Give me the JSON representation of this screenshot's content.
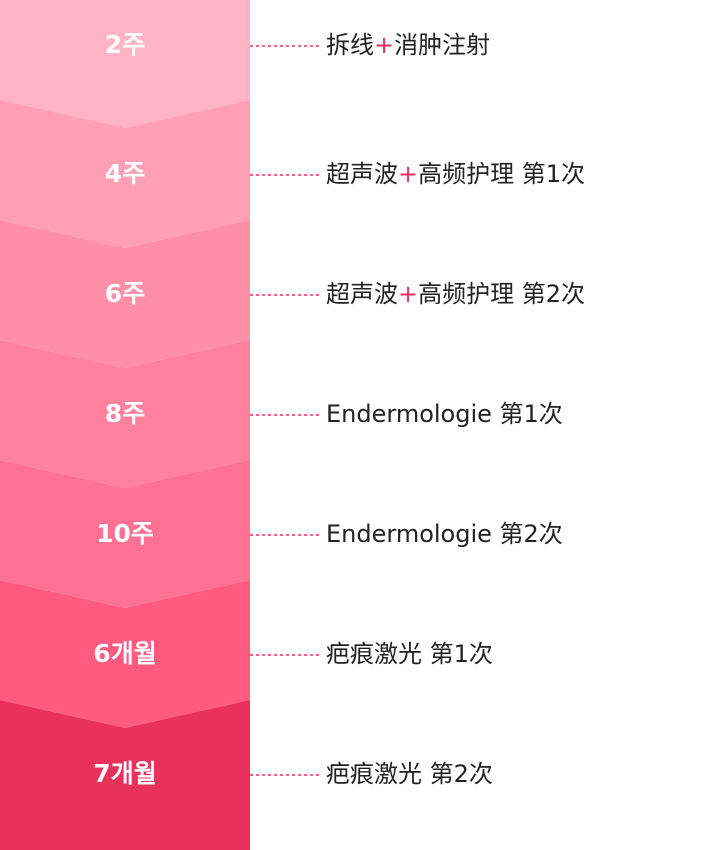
{
  "steps": [
    {
      "period": "2주",
      "color": "#ffb3c5",
      "treatment": {
        "before": "拆线",
        "joiner": "+",
        "after": "消肿注射"
      }
    },
    {
      "period": "4주",
      "color": "#ff9fb6",
      "treatment": {
        "before": "超声波",
        "joiner": "+",
        "after": "高频护理 第1次"
      }
    },
    {
      "period": "6주",
      "color": "#ff8fa9",
      "treatment": {
        "before": "超声波",
        "joiner": "+",
        "after": "高频护理 第2次"
      }
    },
    {
      "period": "8주",
      "color": "#ff819e",
      "treatment": {
        "text": "Endermologie 第1次"
      }
    },
    {
      "period": "10주",
      "color": "#ff7192",
      "treatment": {
        "text": "Endermologie 第2次"
      }
    },
    {
      "period": "6개월",
      "color": "#ff5a80",
      "treatment": {
        "text": "疤痕激光 第1次"
      }
    },
    {
      "period": "7개월",
      "color": "#e8325b",
      "treatment": {
        "text": "疤痕激光 第2次"
      }
    }
  ]
}
